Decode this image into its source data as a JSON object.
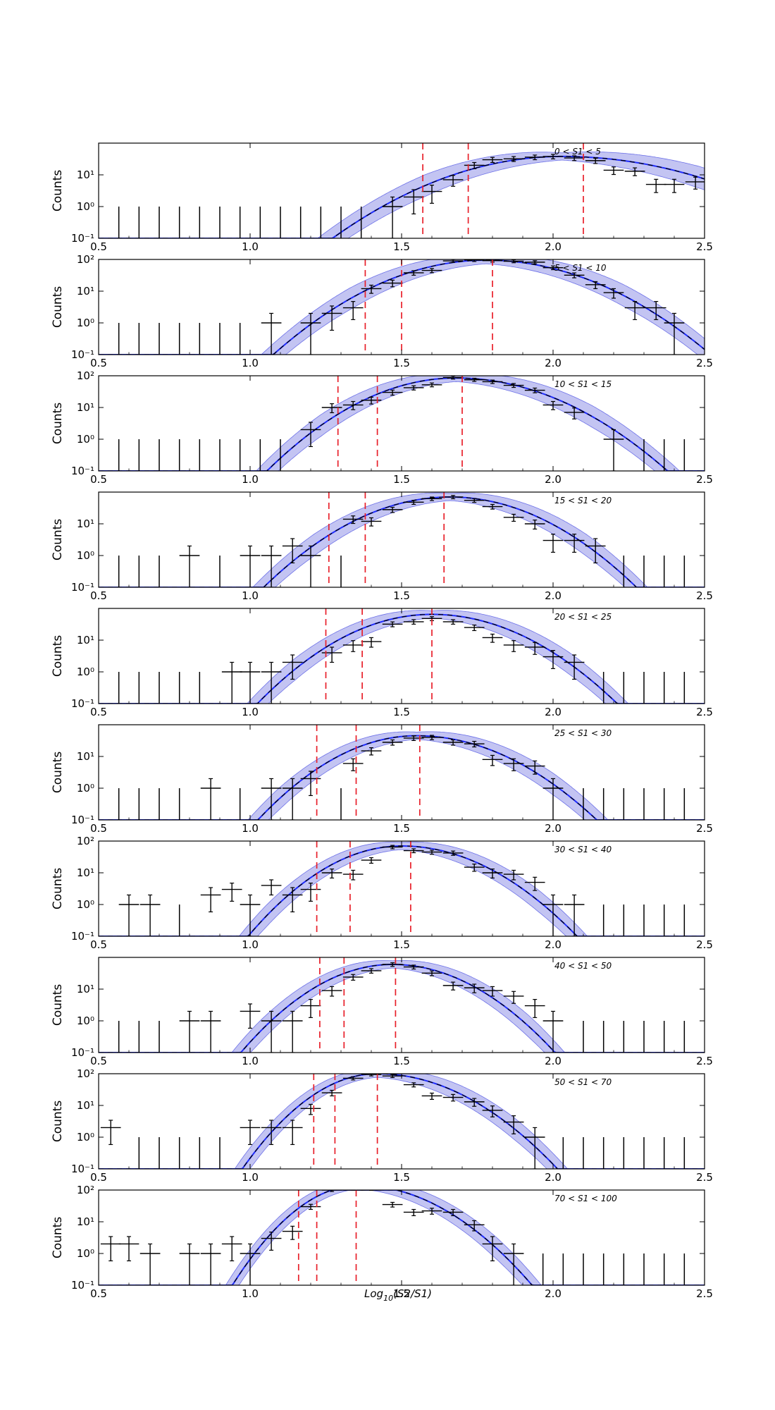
{
  "chart_data": {
    "type": "step-histogram-multi-panel",
    "scale": {
      "y": "log"
    },
    "xlim": [
      0.5,
      2.5
    ],
    "ylim": [
      0.1,
      100
    ],
    "xticks": [
      "0.5",
      "1.0",
      "1.5",
      "2.0",
      "2.5"
    ],
    "colors": {
      "data": "#000000",
      "model": "#1f2cff",
      "band": "#b9baf0",
      "band_edge": "#6e72e8",
      "quantile": "#e8202a"
    },
    "ylabel": "Counts",
    "xlabel": "Log10(S2/S1)",
    "bins": [
      0.5,
      0.5667,
      0.6333,
      0.7,
      0.7667,
      0.8333,
      0.9,
      0.9667,
      1.0333,
      1.1,
      1.1667,
      1.2333,
      1.3,
      1.3667,
      1.4333,
      1.5,
      1.5667,
      1.6333,
      1.7,
      1.7667,
      1.8333,
      1.9,
      1.9667,
      2.0333,
      2.1,
      2.1667,
      2.2333,
      2.3,
      2.3667,
      2.4333,
      2.5
    ],
    "panels": [
      {
        "label": "0 < S1 < 5",
        "yticks": [
          "10⁻¹",
          "10⁰",
          "10¹"
        ],
        "mu": 2.03,
        "sl": 0.22,
        "sr": 0.26,
        "amp": 38,
        "quantiles": [
          1.57,
          1.72,
          2.1
        ],
        "points": [
          [
            1.47,
            1.0
          ],
          [
            1.54,
            2.0
          ],
          [
            1.6,
            3.0
          ],
          [
            1.67,
            7.0
          ],
          [
            1.74,
            20
          ],
          [
            1.8,
            30
          ],
          [
            1.87,
            32
          ],
          [
            1.94,
            36
          ],
          [
            2.0,
            38
          ],
          [
            2.07,
            34
          ],
          [
            2.14,
            28
          ],
          [
            2.2,
            14
          ],
          [
            2.27,
            13
          ],
          [
            2.34,
            5
          ],
          [
            2.4,
            5
          ],
          [
            2.47,
            6
          ]
        ]
      },
      {
        "label": "5 < S1 < 10",
        "yticks": [
          "10⁻¹",
          "10⁰",
          "10¹",
          "10²"
        ],
        "mu": 1.78,
        "sl": 0.19,
        "sr": 0.2,
        "amp": 95,
        "quantiles": [
          1.38,
          1.5,
          1.8
        ],
        "points": [
          [
            1.07,
            1.0
          ],
          [
            1.2,
            1.0
          ],
          [
            1.27,
            2.0
          ],
          [
            1.34,
            3.0
          ],
          [
            1.4,
            12
          ],
          [
            1.47,
            18
          ],
          [
            1.54,
            38
          ],
          [
            1.6,
            45
          ],
          [
            1.67,
            90
          ],
          [
            1.74,
            96
          ],
          [
            1.8,
            92
          ],
          [
            1.87,
            88
          ],
          [
            1.94,
            82
          ],
          [
            2.0,
            55
          ],
          [
            2.07,
            32
          ],
          [
            2.14,
            16
          ],
          [
            2.2,
            9
          ],
          [
            2.27,
            3.0
          ],
          [
            2.34,
            3.0
          ],
          [
            2.4,
            1.0
          ]
        ]
      },
      {
        "label": "10 < S1 < 15",
        "yticks": [
          "10⁻¹",
          "10⁰",
          "10¹",
          "10²"
        ],
        "mu": 1.68,
        "sl": 0.17,
        "sr": 0.19,
        "amp": 85,
        "quantiles": [
          1.29,
          1.42,
          1.7
        ],
        "points": [
          [
            1.2,
            2.0
          ],
          [
            1.27,
            10
          ],
          [
            1.34,
            12
          ],
          [
            1.4,
            17
          ],
          [
            1.47,
            30
          ],
          [
            1.54,
            42
          ],
          [
            1.6,
            52
          ],
          [
            1.67,
            88
          ],
          [
            1.74,
            75
          ],
          [
            1.8,
            65
          ],
          [
            1.87,
            50
          ],
          [
            1.94,
            35
          ],
          [
            2.0,
            12
          ],
          [
            2.07,
            7
          ],
          [
            2.2,
            1.0
          ]
        ]
      },
      {
        "label": "15 < S1 < 20",
        "yticks": [
          "10⁻¹",
          "10⁰",
          "10¹"
        ],
        "mu": 1.66,
        "sl": 0.17,
        "sr": 0.17,
        "amp": 70,
        "quantiles": [
          1.26,
          1.38,
          1.64
        ],
        "points": [
          [
            0.8,
            1.0
          ],
          [
            1.0,
            1.0
          ],
          [
            1.07,
            1.0
          ],
          [
            1.14,
            2.0
          ],
          [
            1.2,
            1.0
          ],
          [
            1.34,
            14
          ],
          [
            1.4,
            12
          ],
          [
            1.47,
            28
          ],
          [
            1.54,
            48
          ],
          [
            1.6,
            62
          ],
          [
            1.67,
            70
          ],
          [
            1.74,
            55
          ],
          [
            1.8,
            35
          ],
          [
            1.87,
            16
          ],
          [
            1.94,
            10
          ],
          [
            2.0,
            3.0
          ],
          [
            2.07,
            3.0
          ],
          [
            2.14,
            2.0
          ]
        ]
      },
      {
        "label": "20 < S1 < 25",
        "yticks": [
          "10⁻¹",
          "10⁰",
          "10¹"
        ],
        "mu": 1.6,
        "sl": 0.16,
        "sr": 0.17,
        "amp": 65,
        "quantiles": [
          1.25,
          1.37,
          1.6
        ],
        "points": [
          [
            0.94,
            1.0
          ],
          [
            1.0,
            1.0
          ],
          [
            1.07,
            1.0
          ],
          [
            1.14,
            2.0
          ],
          [
            1.27,
            4.0
          ],
          [
            1.34,
            7
          ],
          [
            1.4,
            9
          ],
          [
            1.47,
            32
          ],
          [
            1.54,
            38
          ],
          [
            1.6,
            48
          ],
          [
            1.67,
            38
          ],
          [
            1.74,
            25
          ],
          [
            1.8,
            12
          ],
          [
            1.87,
            7
          ],
          [
            1.94,
            6
          ],
          [
            2.0,
            3.0
          ],
          [
            2.07,
            2.0
          ]
        ]
      },
      {
        "label": "25 < S1 < 30",
        "yticks": [
          "10⁻¹",
          "10⁰",
          "10¹"
        ],
        "mu": 1.55,
        "sl": 0.15,
        "sr": 0.17,
        "amp": 45,
        "quantiles": [
          1.22,
          1.35,
          1.56
        ],
        "points": [
          [
            0.87,
            1.0
          ],
          [
            1.07,
            1.0
          ],
          [
            1.14,
            1.0
          ],
          [
            1.2,
            2.0
          ],
          [
            1.34,
            6
          ],
          [
            1.4,
            15
          ],
          [
            1.47,
            28
          ],
          [
            1.54,
            38
          ],
          [
            1.6,
            40
          ],
          [
            1.67,
            28
          ],
          [
            1.74,
            25
          ],
          [
            1.8,
            8
          ],
          [
            1.87,
            6
          ],
          [
            1.94,
            5
          ],
          [
            2.0,
            1.0
          ]
        ]
      },
      {
        "label": "30 < S1 < 40",
        "yticks": [
          "10⁻¹",
          "10⁰",
          "10¹",
          "10²"
        ],
        "mu": 1.5,
        "sl": 0.14,
        "sr": 0.16,
        "amp": 70,
        "quantiles": [
          1.22,
          1.33,
          1.53
        ],
        "points": [
          [
            0.6,
            1.0
          ],
          [
            0.67,
            1.0
          ],
          [
            0.87,
            2.0
          ],
          [
            0.94,
            3.0
          ],
          [
            1.0,
            1.0
          ],
          [
            1.07,
            4.0
          ],
          [
            1.14,
            2.0
          ],
          [
            1.2,
            3.0
          ],
          [
            1.27,
            10
          ],
          [
            1.34,
            9
          ],
          [
            1.4,
            25
          ],
          [
            1.47,
            65
          ],
          [
            1.54,
            50
          ],
          [
            1.6,
            45
          ],
          [
            1.67,
            42
          ],
          [
            1.74,
            15
          ],
          [
            1.8,
            10
          ],
          [
            1.87,
            9
          ],
          [
            1.94,
            5
          ],
          [
            2.0,
            1.0
          ],
          [
            2.07,
            1.0
          ]
        ]
      },
      {
        "label": "40 < S1 < 50",
        "yticks": [
          "10⁻¹",
          "10⁰",
          "10¹"
        ],
        "mu": 1.47,
        "sl": 0.14,
        "sr": 0.15,
        "amp": 60,
        "quantiles": [
          1.23,
          1.31,
          1.48
        ],
        "points": [
          [
            0.8,
            1.0
          ],
          [
            0.87,
            1.0
          ],
          [
            1.0,
            2.0
          ],
          [
            1.07,
            1.0
          ],
          [
            1.14,
            1.0
          ],
          [
            1.2,
            3.0
          ],
          [
            1.27,
            9
          ],
          [
            1.34,
            24
          ],
          [
            1.4,
            38
          ],
          [
            1.47,
            60
          ],
          [
            1.54,
            50
          ],
          [
            1.6,
            32
          ],
          [
            1.67,
            13
          ],
          [
            1.74,
            11
          ],
          [
            1.8,
            9
          ],
          [
            1.87,
            6
          ],
          [
            1.94,
            3.0
          ],
          [
            2.0,
            1.0
          ]
        ]
      },
      {
        "label": "50 < S1 < 70",
        "yticks": [
          "10⁻¹",
          "10⁰",
          "10¹",
          "10²"
        ],
        "mu": 1.42,
        "sl": 0.12,
        "sr": 0.16,
        "amp": 100,
        "quantiles": [
          1.21,
          1.28,
          1.42
        ],
        "points": [
          [
            0.54,
            2.0
          ],
          [
            1.0,
            2.0
          ],
          [
            1.07,
            2.0
          ],
          [
            1.14,
            2.0
          ],
          [
            1.2,
            8
          ],
          [
            1.27,
            25
          ],
          [
            1.34,
            72
          ],
          [
            1.4,
            95
          ],
          [
            1.47,
            85
          ],
          [
            1.54,
            45
          ],
          [
            1.6,
            20
          ],
          [
            1.67,
            18
          ],
          [
            1.74,
            13
          ],
          [
            1.8,
            7
          ],
          [
            1.87,
            3.0
          ],
          [
            1.94,
            1.0
          ]
        ]
      },
      {
        "label": "70 < S1 < 100",
        "yticks": [
          "10⁻¹",
          "10⁰",
          "10¹",
          "10²"
        ],
        "mu": 1.36,
        "sl": 0.11,
        "sr": 0.15,
        "amp": 140,
        "quantiles": [
          1.16,
          1.22,
          1.35
        ],
        "points": [
          [
            0.54,
            2.0
          ],
          [
            0.6,
            2.0
          ],
          [
            0.67,
            1.0
          ],
          [
            0.8,
            1.0
          ],
          [
            0.87,
            1.0
          ],
          [
            0.94,
            2.0
          ],
          [
            1.0,
            1.0
          ],
          [
            1.07,
            3.0
          ],
          [
            1.14,
            5
          ],
          [
            1.2,
            30
          ],
          [
            1.27,
            100
          ],
          [
            1.34,
            125
          ],
          [
            1.4,
            108
          ],
          [
            1.47,
            35
          ],
          [
            1.54,
            20
          ],
          [
            1.6,
            22
          ],
          [
            1.67,
            20
          ],
          [
            1.74,
            8
          ],
          [
            1.8,
            2.0
          ],
          [
            1.87,
            1.0
          ]
        ]
      }
    ]
  }
}
